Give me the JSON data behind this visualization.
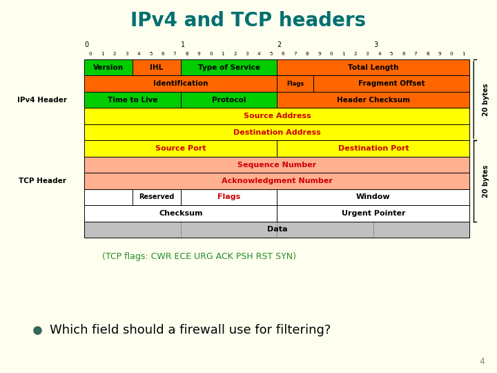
{
  "title": "IPv4 and TCP headers",
  "title_color": "#007070",
  "bg_color": "#FFFFF0",
  "subtitle": "(TCP flags: CWR ECE URG ACK PSH RST SYN)",
  "subtitle_color": "#228B22",
  "question": "Which field should a firewall use for filtering?",
  "page_number": "4",
  "colors": {
    "green": "#00CC00",
    "orange": "#FF6600",
    "yellow": "#FFFF00",
    "salmon": "#FFB090",
    "white": "#FFFFFF",
    "gray": "#C0C0C0",
    "red": "#CC0000",
    "black": "#000000"
  }
}
